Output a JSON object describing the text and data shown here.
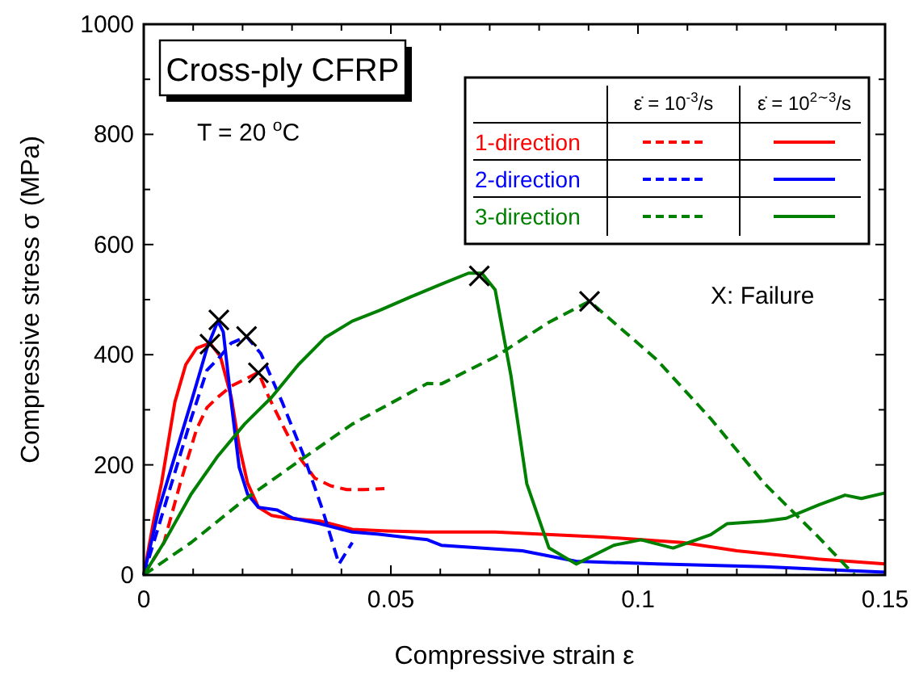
{
  "chart_data": {
    "type": "line",
    "title": "Cross-ply CFRP",
    "xlabel": "Compressive strain ε",
    "ylabel": "Compressive stress σ (MPa)",
    "annotations": [
      "T = 20 $^{o}$C",
      "X: Failure",
      "ε̇ = 10$^{-3}$/s",
      "ε̇ = 10$^{2∼3}$/s"
    ],
    "xlim": [
      0,
      0.15
    ],
    "ylim": [
      0,
      1000
    ],
    "xticks": [
      0,
      {
        "value": 0.01,
        "label": null
      },
      {
        "value": 0.02,
        "label": null
      },
      {
        "value": 0.03,
        "label": null
      },
      {
        "value": 0.04,
        "label": null
      },
      0.05,
      {
        "value": 0.06,
        "label": null
      },
      {
        "value": 0.07,
        "label": null
      },
      {
        "value": 0.08,
        "label": null
      },
      {
        "value": 0.09,
        "label": null
      },
      0.1,
      {
        "value": 0.11,
        "label": null
      },
      {
        "value": 0.12,
        "label": null
      },
      {
        "value": 0.13,
        "label": null
      },
      {
        "value": 0.14,
        "label": null
      },
      0.15
    ],
    "yticks": [
      0,
      {
        "value": 100,
        "label": null
      },
      200,
      {
        "value": 300,
        "label": null
      },
      400,
      {
        "value": 500,
        "label": null
      },
      600,
      {
        "value": 700,
        "label": null
      },
      800,
      {
        "value": 900,
        "label": null
      },
      1000
    ],
    "grid": false,
    "legend": "top right",
    "marker": "none",
    "series": [
      {
        "color": "#ff0000",
        "line_style": "dashed",
        "x": [
          0,
          0.0041,
          0.0074,
          0.0107,
          0.0128,
          0.015,
          0.0177,
          0.0204,
          0.0232,
          0.0253,
          0.028,
          0.0313,
          0.0346,
          0.0378,
          0.0411,
          0.0443,
          0.0487
        ],
        "values": [
          0,
          59,
          167,
          265,
          304,
          323,
          343,
          355,
          368,
          323,
          274,
          216,
          176,
          162,
          155,
          155,
          157
        ]
      },
      {
        "name": "1-direction",
        "color": "#ff0000",
        "line_style": "solid",
        "x": [
          0,
          0.002,
          0.0036,
          0.0063,
          0.0085,
          0.0107,
          0.0134,
          0.0155,
          0.0177,
          0.0193,
          0.021,
          0.0232,
          0.0259,
          0.0291,
          0.0357,
          0.0422,
          0.0493,
          0.0574,
          0.0711,
          0.0928,
          0.109,
          0.12,
          0.1365,
          0.15
        ],
        "values": [
          0,
          98,
          167,
          314,
          382,
          412,
          421,
          397,
          323,
          235,
          167,
          123,
          108,
          103,
          98,
          83,
          80,
          78,
          78,
          69,
          59,
          44,
          29,
          20
        ]
      },
      {
        "color": "#0000ff",
        "line_style": "dashed",
        "x": [
          0,
          0.003,
          0.0063,
          0.0096,
          0.0128,
          0.015,
          0.0177,
          0.0208,
          0.0237,
          0.028,
          0.0324,
          0.0362,
          0.0395,
          0.0422
        ],
        "values": [
          0,
          88,
          186,
          284,
          372,
          392,
          421,
          433,
          402,
          314,
          216,
          118,
          20,
          59
        ]
      },
      {
        "name": "2-direction",
        "color": "#0000ff",
        "line_style": "solid",
        "x": [
          0,
          0.003,
          0.0063,
          0.0096,
          0.0128,
          0.015,
          0.0161,
          0.0177,
          0.0193,
          0.021,
          0.0232,
          0.027,
          0.0302,
          0.0357,
          0.0422,
          0.0476,
          0.0574,
          0.0602,
          0.0766,
          0.0875,
          0.1038,
          0.1256,
          0.15
        ],
        "values": [
          0,
          118,
          216,
          314,
          412,
          461,
          441,
          314,
          196,
          147,
          123,
          118,
          103,
          93,
          78,
          74,
          64,
          54,
          44,
          25,
          20,
          15,
          5
        ]
      },
      {
        "color": "#008000",
        "line_style": "dashed",
        "x": [
          0,
          0.0096,
          0.0204,
          0.0313,
          0.0422,
          0.0574,
          0.0602,
          0.0711,
          0.082,
          0.0902,
          0.1038,
          0.1147,
          0.1256,
          0.1365,
          0.1438
        ],
        "values": [
          0,
          59,
          137,
          206,
          274,
          348,
          347,
          396,
          459,
          497,
          391,
          284,
          166,
          69,
          0
        ]
      },
      {
        "name": "3-direction",
        "color": "#008000",
        "line_style": "solid",
        "x": [
          0,
          0.0041,
          0.0096,
          0.015,
          0.0204,
          0.0259,
          0.0313,
          0.0367,
          0.0422,
          0.0476,
          0.0548,
          0.0602,
          0.0657,
          0.0684,
          0.0711,
          0.0743,
          0.0775,
          0.082,
          0.0875,
          0.0951,
          0.1006,
          0.1071,
          0.1147,
          0.118,
          0.1256,
          0.13,
          0.1365,
          0.1419,
          0.1452,
          0.15
        ],
        "values": [
          0,
          59,
          147,
          216,
          274,
          323,
          382,
          431,
          461,
          480,
          508,
          528,
          548,
          548,
          518,
          362,
          166,
          49,
          20,
          54,
          64,
          49,
          73,
          93,
          98,
          103,
          127,
          145,
          139,
          149
        ]
      },
      {
        "type": "scatter",
        "color": "#000000",
        "marker": "cross",
        "x": [
          0.0134,
          0.0152,
          0.0208,
          0.0232,
          0.0679,
          0.0902
        ],
        "values": [
          419,
          463,
          433,
          367,
          543,
          497
        ]
      }
    ]
  }
}
